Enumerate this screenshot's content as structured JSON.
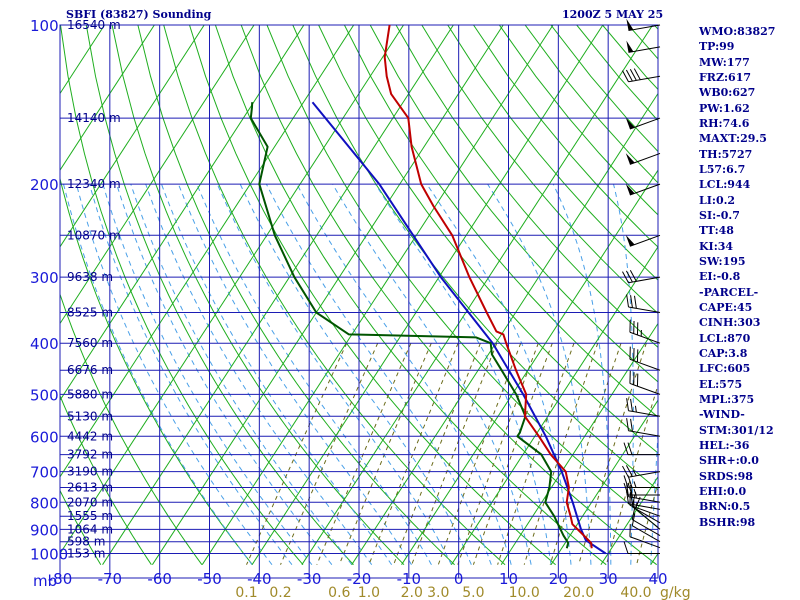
{
  "header": {
    "station": "SBFI (83827) Sounding",
    "time": "1200Z  5 MAY 25"
  },
  "indices": [
    "WMO:83827",
    "TP:99",
    "MW:177",
    "FRZ:617",
    "WB0:627",
    "PW:1.62",
    "RH:74.6",
    "MAXT:29.5",
    "TH:5727",
    "L57:6.7",
    "LCL:944",
    "LI:0.2",
    "SI:-0.7",
    "TT:48",
    "KI:34",
    "SW:195",
    "EI:-0.8",
    "-PARCEL-",
    "CAPE:45",
    "CINH:303",
    "LCL:870",
    "CAP:3.8",
    "LFC:605",
    "EL:575",
    "MPL:375",
    "-WIND-",
    "STM:301/12",
    "HEL:-36",
    "SHR+:0.0",
    "SRDS:98",
    "EHI:0.0",
    "BRN:0.5",
    "BSHR:98"
  ],
  "colors": {
    "grid": "#1c1cb4",
    "dry_adiabat": "#1fae1f",
    "moist_adiabat": "#4aa0e8",
    "mixing_ratio": "#6b6b1a",
    "temperature": "#c00000",
    "dewpoint": "#005500",
    "parcel": "#1010c0",
    "barb": "#000000",
    "text": "#00008b"
  },
  "chart_data": {
    "type": "skew-t",
    "pressure_unit": "mb",
    "pressure_levels": [
      100,
      200,
      300,
      400,
      500,
      600,
      700,
      800,
      900,
      1000
    ],
    "pressure_range": [
      100,
      1050
    ],
    "temperature_ticks": [
      -80,
      -70,
      -60,
      -50,
      -40,
      -30,
      -20,
      -10,
      0,
      10,
      20,
      30,
      40
    ],
    "temperature_range": [
      -80,
      40
    ],
    "height_labels": [
      {
        "p": 100,
        "label": "16540 m"
      },
      {
        "p": 150,
        "label": "14140 m"
      },
      {
        "p": 200,
        "label": "12340 m"
      },
      {
        "p": 250,
        "label": "10870 m"
      },
      {
        "p": 300,
        "label": "9638 m"
      },
      {
        "p": 350,
        "label": "8525 m"
      },
      {
        "p": 400,
        "label": "7560 m"
      },
      {
        "p": 450,
        "label": "6676 m"
      },
      {
        "p": 500,
        "label": "5880 m"
      },
      {
        "p": 550,
        "label": "5130 m"
      },
      {
        "p": 600,
        "label": "4442 m"
      },
      {
        "p": 650,
        "label": "3792 m"
      },
      {
        "p": 700,
        "label": "3190 m"
      },
      {
        "p": 750,
        "label": "2613 m"
      },
      {
        "p": 800,
        "label": "2070 m"
      },
      {
        "p": 850,
        "label": "1555 m"
      },
      {
        "p": 900,
        "label": "1064 m"
      },
      {
        "p": 950,
        "label": "598 m"
      },
      {
        "p": 1000,
        "label": "153 m"
      }
    ],
    "mixing_ratio_labels": [
      {
        "w": 0.1,
        "label": "0.1"
      },
      {
        "w": 0.2,
        "label": "0.2"
      },
      {
        "w": 0.6,
        "label": "0.6"
      },
      {
        "w": 1.0,
        "label": "1.0"
      },
      {
        "w": 2.0,
        "label": "2.0"
      },
      {
        "w": 3.0,
        "label": "3.0"
      },
      {
        "w": 5.0,
        "label": "5.0"
      },
      {
        "w": 10.0,
        "label": "10.0"
      },
      {
        "w": 20.0,
        "label": "20.0"
      },
      {
        "w": 40.0,
        "label": "40.0"
      }
    ],
    "mixing_ratio_unit": "g/kg",
    "temperature": [
      {
        "p": 977,
        "t": 26.0
      },
      {
        "p": 955,
        "t": 25.2
      },
      {
        "p": 925,
        "t": 22.8
      },
      {
        "p": 880,
        "t": 19.0
      },
      {
        "p": 850,
        "t": 17.6
      },
      {
        "p": 800,
        "t": 15.0
      },
      {
        "p": 750,
        "t": 13.5
      },
      {
        "p": 700,
        "t": 10.8
      },
      {
        "p": 650,
        "t": 5.6
      },
      {
        "p": 600,
        "t": 0.8
      },
      {
        "p": 550,
        "t": -4.6
      },
      {
        "p": 500,
        "t": -7.2
      },
      {
        "p": 450,
        "t": -12.4
      },
      {
        "p": 400,
        "t": -17.9
      },
      {
        "p": 385,
        "t": -19.6
      },
      {
        "p": 380,
        "t": -21.4
      },
      {
        "p": 350,
        "t": -25.8
      },
      {
        "p": 300,
        "t": -33.9
      },
      {
        "p": 250,
        "t": -42.8
      },
      {
        "p": 220,
        "t": -50.4
      },
      {
        "p": 200,
        "t": -55.7
      },
      {
        "p": 170,
        "t": -62.5
      },
      {
        "p": 150,
        "t": -66.9
      },
      {
        "p": 135,
        "t": -73.5
      },
      {
        "p": 125,
        "t": -76.7
      },
      {
        "p": 115,
        "t": -79.6
      },
      {
        "p": 100,
        "t": -82.8
      }
    ],
    "dewpoint": [
      {
        "p": 977,
        "t": 21.0
      },
      {
        "p": 955,
        "t": 20.6
      },
      {
        "p": 925,
        "t": 18.7
      },
      {
        "p": 880,
        "t": 16.1
      },
      {
        "p": 850,
        "t": 14.3
      },
      {
        "p": 800,
        "t": 10.7
      },
      {
        "p": 750,
        "t": 9.6
      },
      {
        "p": 700,
        "t": 7.9
      },
      {
        "p": 650,
        "t": 3.7
      },
      {
        "p": 600,
        "t": -3.5
      },
      {
        "p": 590,
        "t": -3.5
      },
      {
        "p": 550,
        "t": -4.5
      },
      {
        "p": 500,
        "t": -9.2
      },
      {
        "p": 450,
        "t": -15.3
      },
      {
        "p": 420,
        "t": -19.3
      },
      {
        "p": 400,
        "t": -21.0
      },
      {
        "p": 390,
        "t": -24.7
      },
      {
        "p": 385,
        "t": -50.6
      },
      {
        "p": 350,
        "t": -60.0
      },
      {
        "p": 300,
        "t": -69.0
      },
      {
        "p": 250,
        "t": -78.4
      },
      {
        "p": 200,
        "t": -88.2
      },
      {
        "p": 170,
        "t": -91.4
      },
      {
        "p": 150,
        "t": -98.5
      },
      {
        "p": 143,
        "t": -99.7
      },
      {
        "p": 140,
        "t": -100.3
      }
    ],
    "parcel": [
      {
        "p": 1000,
        "t": 29.5
      },
      {
        "p": 944,
        "t": 23.8
      },
      {
        "p": 900,
        "t": 21.4
      },
      {
        "p": 800,
        "t": 16.2
      },
      {
        "p": 700,
        "t": 10.0
      },
      {
        "p": 600,
        "t": 2.2
      },
      {
        "p": 500,
        "t": -7.8
      },
      {
        "p": 400,
        "t": -20.6
      },
      {
        "p": 300,
        "t": -39.6
      },
      {
        "p": 200,
        "t": -64.1
      },
      {
        "p": 140,
        "t": -88.2
      }
    ],
    "wind_barbs": [
      {
        "p": 1000,
        "dir": 270,
        "spd": 10
      },
      {
        "p": 975,
        "dir": 290,
        "spd": 10
      },
      {
        "p": 950,
        "dir": 300,
        "spd": 10
      },
      {
        "p": 925,
        "dir": 300,
        "spd": 10
      },
      {
        "p": 900,
        "dir": 310,
        "spd": 10
      },
      {
        "p": 875,
        "dir": 300,
        "spd": 15
      },
      {
        "p": 850,
        "dir": 290,
        "spd": 15
      },
      {
        "p": 825,
        "dir": 280,
        "spd": 20
      },
      {
        "p": 800,
        "dir": 280,
        "spd": 25
      },
      {
        "p": 775,
        "dir": 270,
        "spd": 25
      },
      {
        "p": 750,
        "dir": 270,
        "spd": 25
      },
      {
        "p": 700,
        "dir": 260,
        "spd": 25
      },
      {
        "p": 650,
        "dir": 270,
        "spd": 20
      },
      {
        "p": 600,
        "dir": 280,
        "spd": 20
      },
      {
        "p": 550,
        "dir": 280,
        "spd": 25
      },
      {
        "p": 500,
        "dir": 290,
        "spd": 30
      },
      {
        "p": 450,
        "dir": 290,
        "spd": 30
      },
      {
        "p": 400,
        "dir": 290,
        "spd": 35
      },
      {
        "p": 350,
        "dir": 280,
        "spd": 30
      },
      {
        "p": 300,
        "dir": 260,
        "spd": 30
      },
      {
        "p": 250,
        "dir": 250,
        "spd": 50
      },
      {
        "p": 200,
        "dir": 250,
        "spd": 50
      },
      {
        "p": 175,
        "dir": 250,
        "spd": 50
      },
      {
        "p": 150,
        "dir": 250,
        "spd": 50
      },
      {
        "p": 125,
        "dir": 260,
        "spd": 40
      },
      {
        "p": 110,
        "dir": 260,
        "spd": 50
      },
      {
        "p": 100,
        "dir": 260,
        "spd": 50
      }
    ]
  }
}
